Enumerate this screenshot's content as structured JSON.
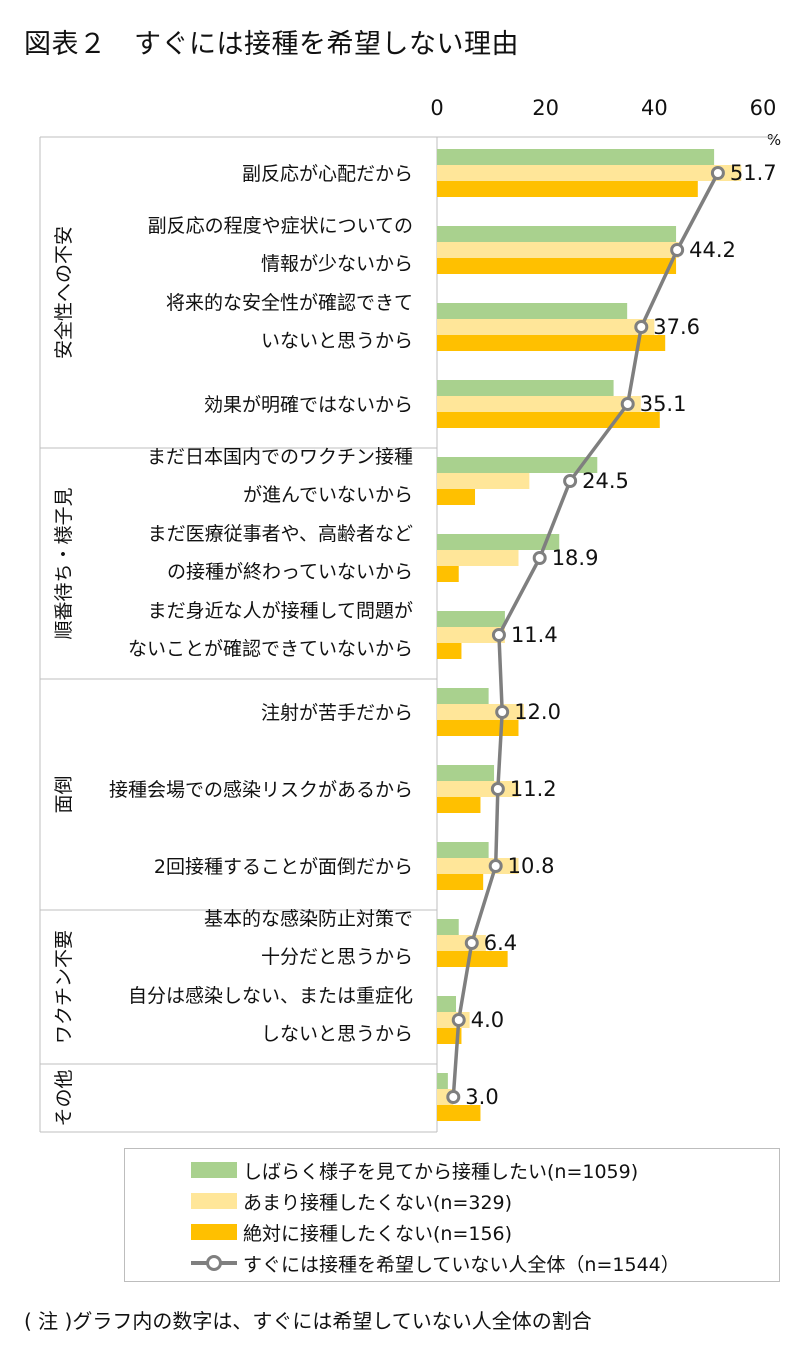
{
  "title": "図表２　すぐには接種を希望しない理由",
  "note": "( 注 )グラフ内の数字は、すぐには希望していない人全体の割合",
  "colors": {
    "green": "#a9d18e",
    "lightyellow": "#ffe699",
    "orange": "#ffc000",
    "line": "#7f7f7f"
  },
  "chart_data": {
    "type": "bar",
    "orientation": "horizontal",
    "xlim": [
      0,
      60
    ],
    "xticks": [
      0,
      20,
      40,
      60
    ],
    "unit": "%",
    "groups": [
      {
        "name": "安全性への不安",
        "start": 0,
        "end": 3
      },
      {
        "name": "順番待ち・様子見",
        "start": 4,
        "end": 6
      },
      {
        "name": "面倒",
        "start": 7,
        "end": 9
      },
      {
        "name": "ワクチン不要",
        "start": 10,
        "end": 11
      },
      {
        "name": "その他",
        "start": 12,
        "end": 12
      }
    ],
    "categories": [
      [
        "副反応が心配だから"
      ],
      [
        "副反応の程度や症状についての",
        "情報が少ないから"
      ],
      [
        "将来的な安全性が確認できて",
        "いないと思うから"
      ],
      [
        "効果が明確ではないから"
      ],
      [
        "まだ日本国内でのワクチン接種",
        "が進んでいないから"
      ],
      [
        "まだ医療従事者や、高齢者など",
        "の接種が終わっていないから"
      ],
      [
        "まだ身近な人が接種して問題が",
        "ないことが確認できていないから"
      ],
      [
        "注射が苦手だから"
      ],
      [
        "接種会場での感染リスクがあるから"
      ],
      [
        "2回接種することが面倒だから"
      ],
      [
        "基本的な感染防止対策で",
        "十分だと思うから"
      ],
      [
        "自分は感染しない、または重症化",
        "しないと思うから"
      ],
      [
        ""
      ]
    ],
    "series": [
      {
        "name": "しばらく様子を見てから接種したい(n=1059)",
        "type": "bar",
        "color": "#a9d18e",
        "values": [
          51,
          44,
          35,
          32.5,
          29.5,
          22.5,
          12.5,
          9.5,
          10.5,
          9.5,
          4,
          3.5,
          2
        ]
      },
      {
        "name": "あまり接種したくない(n=329)",
        "type": "bar",
        "color": "#ffe699",
        "values": [
          56,
          44.5,
          40,
          37.5,
          17,
          15,
          12.5,
          16,
          15,
          15,
          9,
          6,
          3
        ]
      },
      {
        "name": "絶対に接種したくない(n=156)",
        "type": "bar",
        "color": "#ffc000",
        "values": [
          48,
          44,
          42,
          41,
          7,
          4,
          4.5,
          15,
          8,
          8.5,
          13,
          4.5,
          8
        ]
      },
      {
        "name": "すぐには接種を希望していない人全体（n=1544）",
        "type": "line",
        "color": "#7f7f7f",
        "values": [
          51.7,
          44.2,
          37.6,
          35.1,
          24.5,
          18.9,
          11.4,
          12.0,
          11.2,
          10.8,
          6.4,
          4.0,
          3.0
        ],
        "labels": [
          "51.7",
          "44.2",
          "37.6",
          "35.1",
          "24.5",
          "18.9",
          "11.4",
          "12.0",
          "11.2",
          "10.8",
          "6.4",
          "4.0",
          "3.0"
        ]
      }
    ],
    "legend_position": "bottom"
  }
}
